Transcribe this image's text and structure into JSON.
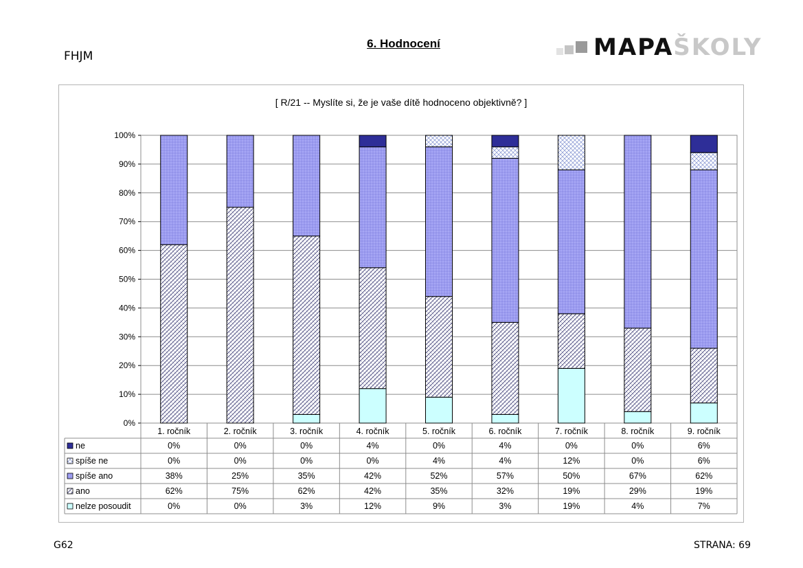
{
  "header": {
    "school": "FHJM",
    "title": "6. Hodnocení",
    "logo_dark": "MAPA",
    "logo_light": "ŠKOLY"
  },
  "footer": {
    "code": "G62",
    "page": "STRANA: 69"
  },
  "colors": {
    "ne": "#2e2e98",
    "spise_ne": "#c9d4f4",
    "spise_ano": "#9c9cf0",
    "ano": "#ffffff",
    "nelze_posoudit": "#ccffff"
  },
  "chart_data": {
    "type": "bar",
    "stacked": true,
    "title": "[ R/21 -- Myslíte si, že je vaše dítě hodnoceno objektivně? ]",
    "categories": [
      "1. ročník",
      "2. ročník",
      "3. ročník",
      "4. ročník",
      "5. ročník",
      "6. ročník",
      "7. ročník",
      "8. ročník",
      "9. ročník"
    ],
    "ylim": [
      0,
      100
    ],
    "yticks": [
      "0%",
      "10%",
      "20%",
      "30%",
      "40%",
      "50%",
      "60%",
      "70%",
      "80%",
      "90%",
      "100%"
    ],
    "grid": true,
    "legend": "data-table",
    "series": [
      {
        "name": "ne",
        "values": [
          0,
          0,
          0,
          4,
          0,
          4,
          0,
          0,
          6
        ],
        "labels": [
          "0%",
          "0%",
          "0%",
          "4%",
          "0%",
          "4%",
          "0%",
          "0%",
          "6%"
        ]
      },
      {
        "name": "spíše ne",
        "values": [
          0,
          0,
          0,
          0,
          4,
          4,
          12,
          0,
          6
        ],
        "labels": [
          "0%",
          "0%",
          "0%",
          "0%",
          "4%",
          "4%",
          "12%",
          "0%",
          "6%"
        ]
      },
      {
        "name": "spíše ano",
        "values": [
          38,
          25,
          35,
          42,
          52,
          57,
          50,
          67,
          62
        ],
        "labels": [
          "38%",
          "25%",
          "35%",
          "42%",
          "52%",
          "57%",
          "50%",
          "67%",
          "62%"
        ]
      },
      {
        "name": "ano",
        "values": [
          62,
          75,
          62,
          42,
          35,
          32,
          19,
          29,
          19
        ],
        "labels": [
          "62%",
          "75%",
          "62%",
          "42%",
          "35%",
          "32%",
          "19%",
          "29%",
          "19%"
        ]
      },
      {
        "name": "nelze posoudit",
        "values": [
          0,
          0,
          3,
          12,
          9,
          3,
          19,
          4,
          7
        ],
        "labels": [
          "0%",
          "0%",
          "3%",
          "12%",
          "9%",
          "3%",
          "19%",
          "4%",
          "7%"
        ]
      }
    ]
  }
}
